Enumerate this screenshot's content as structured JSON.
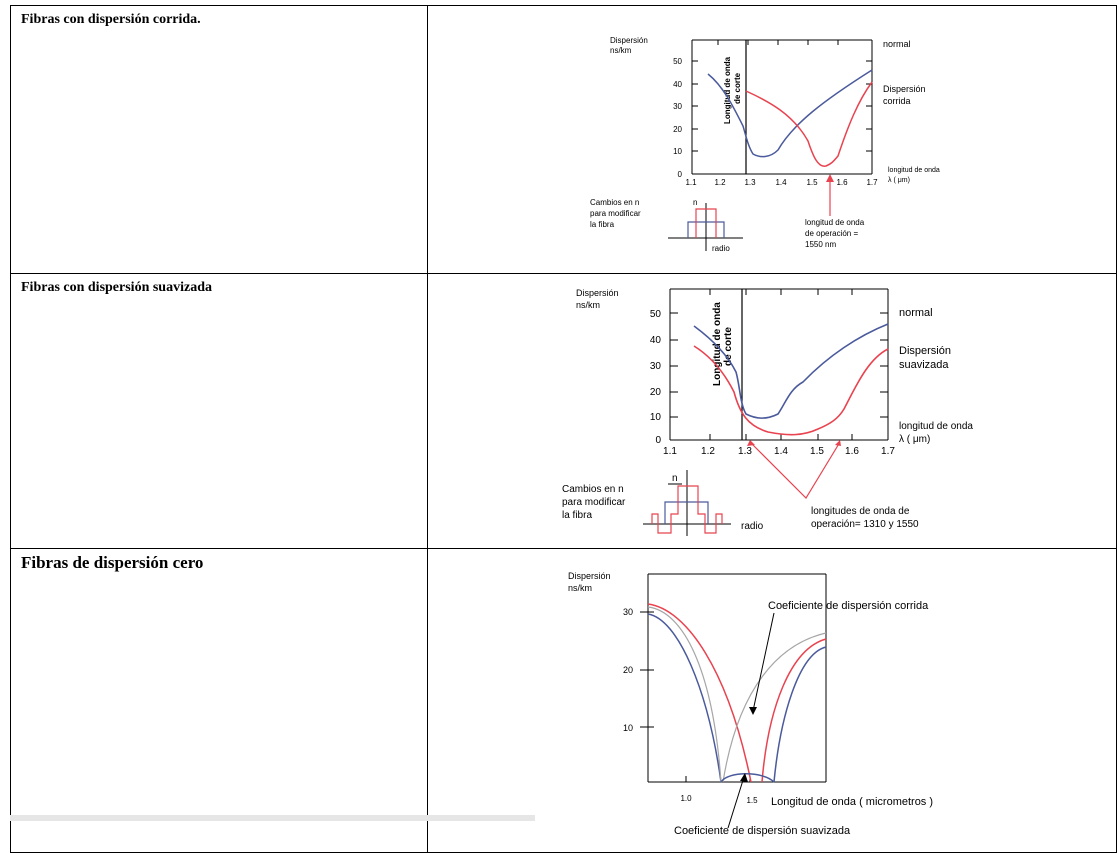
{
  "rows": [
    {
      "label": "Fibras con dispersión corrida.",
      "figure": {
        "ylabel_line1": "Dispersión",
        "ylabel_line2": "ns/km",
        "y_ticks": [
          "0",
          "10",
          "20",
          "30",
          "40",
          "50"
        ],
        "x_ticks": [
          "1.1",
          "1.2",
          "1.3",
          "1.4",
          "1.5",
          "1.6",
          "1.7"
        ],
        "xlabel_line1": "longitud de onda",
        "xlabel_line2": "λ ( μm)",
        "cutoff_line1": "Longitud de onda",
        "cutoff_line2": "de corte",
        "legend_normal": "normal",
        "legend_other_line1": "Dispersión",
        "legend_other_line2": "corrida",
        "profile_line1": "Cambios en n",
        "profile_line2": "para modificar",
        "profile_line3": "la fibra",
        "profile_n": "n",
        "profile_radius": "radio",
        "op_line1": "longitud de onda",
        "op_line2": "de operación =",
        "op_line3": "1550 nm"
      }
    },
    {
      "label": "Fibras con dispersión suavizada",
      "figure": {
        "ylabel_line1": "Dispersión",
        "ylabel_line2": "ns/km",
        "y_ticks": [
          "0",
          "10",
          "20",
          "30",
          "40",
          "50"
        ],
        "x_ticks": [
          "1.1",
          "1.2",
          "1.3",
          "1.4",
          "1.5",
          "1.6",
          "1.7"
        ],
        "xlabel_line1": "longitud de onda",
        "xlabel_line2": "λ ( μm)",
        "cutoff_line1": "Longitud de onda",
        "cutoff_line2": "de corte",
        "legend_normal": "normal",
        "legend_other_line1": "Dispersión",
        "legend_other_line2": "suavizada",
        "profile_line1": "Cambios en n",
        "profile_line2": "para modificar",
        "profile_line3": "la fibra",
        "profile_n": "n",
        "profile_radius": "radio",
        "op_line1": "longitudes de onda de",
        "op_line2": "operación= 1310 y 1550"
      }
    },
    {
      "label": "Fibras de dispersión cero",
      "figure": {
        "ylabel_line1": "Dispersión",
        "ylabel_line2": "ns/km",
        "y_ticks": [
          "10",
          "20",
          "30"
        ],
        "x_ticks": [
          "1.0",
          "1.5"
        ],
        "xlabel": "Longitud de onda ( micrometros )",
        "annot_top": "Coeficiente de dispersión corrida",
        "annot_bottom": "Coeficiente de dispersión suavizada"
      }
    }
  ],
  "colors": {
    "blue": "#4a5a9c",
    "red": "#e8434f",
    "gray": "#a6a6a6",
    "line": "#000000"
  }
}
